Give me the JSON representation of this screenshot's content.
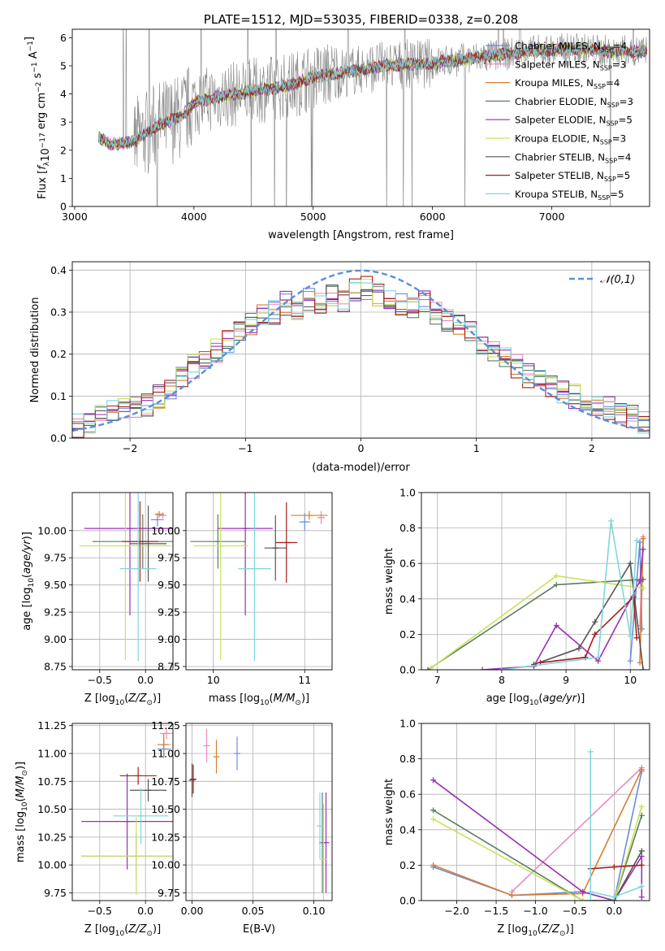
{
  "chart_data": [
    {
      "id": "spectrum",
      "type": "line",
      "title": "PLATE=1512, MJD=53035, FIBERID=0338, z=0.208",
      "xlabel": "wavelength [Angstrom, rest frame]",
      "ylabel": "Flux [f_λ 10^-17 erg cm^-2 s^-1 A^-1]",
      "xlim": [
        2980,
        7820
      ],
      "ylim": [
        0,
        6.3
      ],
      "xticks": [
        3000,
        4000,
        5000,
        6000,
        7000
      ],
      "yticks": [
        0,
        1,
        2,
        3,
        4,
        5,
        6
      ],
      "grid": false,
      "legend_position": "right",
      "series": [
        {
          "name": "Chabrier MILES, N_SSP=4",
          "color": "#6b8ddb"
        },
        {
          "name": "Salpeter MILES, N_SSP=3",
          "color": "#e98bc0"
        },
        {
          "name": "Kroupa MILES, N_SSP=4",
          "color": "#d97d2c"
        },
        {
          "name": "Chabrier ELODIE, N_SSP=3",
          "color": "#5d7d62"
        },
        {
          "name": "Salpeter ELODIE, N_SSP=5",
          "color": "#9a2fb3"
        },
        {
          "name": "Kroupa ELODIE, N_SSP=3",
          "color": "#c9e35a"
        },
        {
          "name": "Chabrier STELIB, N_SSP=4",
          "color": "#555555"
        },
        {
          "name": "Salpeter STELIB, N_SSP=5",
          "color": "#a61f1f"
        },
        {
          "name": "Kroupa STELIB, N_SSP=5",
          "color": "#7fd6dc"
        }
      ],
      "data_color": "#888888",
      "model_trend": {
        "x": [
          3200,
          3300,
          3500,
          3700,
          3900,
          4000,
          4200,
          4500,
          4800,
          5000,
          5300,
          5600,
          6000,
          6400,
          6800,
          7200,
          7500,
          7800
        ],
        "y": [
          2.5,
          2.2,
          2.3,
          2.9,
          3.2,
          3.7,
          3.9,
          4.1,
          4.3,
          4.6,
          4.8,
          5.0,
          5.1,
          5.3,
          5.5,
          5.6,
          5.5,
          5.5
        ]
      }
    },
    {
      "id": "residuals",
      "type": "histogram",
      "xlabel": "(data-model)/error",
      "ylabel": "Normed distribution",
      "xlim": [
        -2.5,
        2.5
      ],
      "ylim": [
        0,
        0.42
      ],
      "xticks": [
        -2,
        -1,
        0,
        1,
        2
      ],
      "yticks": [
        0.0,
        0.1,
        0.2,
        0.3,
        0.4
      ],
      "grid": true,
      "legend": {
        "label": "𝒩(0,1)",
        "position": "top-right",
        "style": "dashed",
        "color": "#5b8fd9"
      },
      "bin_edges": [
        -2.5,
        -2.4,
        -2.3,
        -2.2,
        -2.1,
        -2.0,
        -1.9,
        -1.8,
        -1.7,
        -1.6,
        -1.5,
        -1.4,
        -1.3,
        -1.2,
        -1.1,
        -1.0,
        -0.9,
        -0.8,
        -0.7,
        -0.6,
        -0.5,
        -0.4,
        -0.3,
        -0.2,
        -0.1,
        0.0,
        0.1,
        0.2,
        0.3,
        0.4,
        0.5,
        0.6,
        0.7,
        0.8,
        0.9,
        1.0,
        1.1,
        1.2,
        1.3,
        1.4,
        1.5,
        1.6,
        1.7,
        1.8,
        1.9,
        2.0,
        2.1,
        2.2,
        2.3,
        2.4,
        2.5
      ],
      "mean_values": [
        0.03,
        0.04,
        0.05,
        0.06,
        0.07,
        0.07,
        0.08,
        0.1,
        0.12,
        0.14,
        0.17,
        0.19,
        0.21,
        0.23,
        0.25,
        0.27,
        0.29,
        0.3,
        0.32,
        0.31,
        0.33,
        0.32,
        0.34,
        0.33,
        0.35,
        0.36,
        0.34,
        0.33,
        0.32,
        0.31,
        0.33,
        0.3,
        0.28,
        0.27,
        0.25,
        0.23,
        0.21,
        0.19,
        0.17,
        0.15,
        0.14,
        0.12,
        0.11,
        0.1,
        0.09,
        0.08,
        0.07,
        0.06,
        0.05,
        0.04
      ]
    },
    {
      "id": "age-vs-Z",
      "type": "errorbar",
      "xlabel": "Z [log10(Z/Z⊙)]",
      "ylabel": "age  [log10(age/yr)]",
      "xlim": [
        -0.8,
        0.3
      ],
      "ylim": [
        8.72,
        10.35
      ],
      "xticks": [
        -0.5,
        0.0
      ],
      "yticks": [
        8.75,
        9.0,
        9.25,
        9.5,
        9.75,
        10.0
      ],
      "grid": true,
      "points": [
        {
          "series": "Chabrier MILES",
          "x": 0.13,
          "xerr": 0.07,
          "y": 10.1,
          "yerr": 0.06
        },
        {
          "series": "Salpeter MILES",
          "x": 0.19,
          "xerr": 0.04,
          "y": 10.14,
          "yerr": 0.03
        },
        {
          "series": "Kroupa MILES",
          "x": 0.15,
          "xerr": 0.05,
          "y": 10.15,
          "yerr": 0.03
        },
        {
          "series": "Chabrier ELODIE",
          "x": -0.03,
          "xerr": 0.55,
          "y": 9.9,
          "yerr": 0.25
        },
        {
          "series": "Salpeter ELODIE",
          "x": -0.17,
          "xerr": 0.5,
          "y": 10.02,
          "yerr": 0.8
        },
        {
          "series": "Kroupa ELODIE",
          "x": -0.22,
          "xerr": 0.5,
          "y": 9.86,
          "yerr": 1.05
        },
        {
          "series": "Chabrier STELIB",
          "x": 0.03,
          "xerr": 0.2,
          "y": 9.88,
          "yerr": 0.35
        },
        {
          "series": "Salpeter STELIB",
          "x": -0.06,
          "xerr": 0.2,
          "y": 9.9,
          "yerr": 0.37
        },
        {
          "series": "Kroupa STELIB",
          "x": -0.08,
          "xerr": 0.2,
          "y": 9.65,
          "yerr": 0.85
        }
      ]
    },
    {
      "id": "age-vs-mass",
      "type": "errorbar",
      "xlabel": "mass [log10(M/M⊙)]",
      "ylabel": "",
      "xlim": [
        9.7,
        11.3
      ],
      "ylim": [
        8.72,
        10.35
      ],
      "xticks": [
        10,
        11
      ],
      "yticks": [
        8.75,
        9.0,
        9.25,
        9.5,
        9.75,
        10.0
      ],
      "grid": true,
      "points": [
        {
          "series": "Chabrier MILES",
          "x": 11.0,
          "xerr": 0.06,
          "y": 10.08,
          "yerr": 0.08
        },
        {
          "series": "Salpeter MILES",
          "x": 11.18,
          "xerr": 0.04,
          "y": 10.12,
          "yerr": 0.06
        },
        {
          "series": "Kroupa MILES",
          "x": 11.05,
          "xerr": 0.2,
          "y": 10.14,
          "yerr": 0.04
        },
        {
          "series": "Chabrier ELODIE",
          "x": 10.05,
          "xerr": 0.3,
          "y": 9.9,
          "yerr": 0.25
        },
        {
          "series": "Salpeter ELODIE",
          "x": 10.35,
          "xerr": 0.3,
          "y": 10.02,
          "yerr": 0.8
        },
        {
          "series": "Kroupa ELODIE",
          "x": 10.08,
          "xerr": 0.3,
          "y": 9.86,
          "yerr": 1.05
        },
        {
          "series": "Chabrier STELIB",
          "x": 10.68,
          "xerr": 0.12,
          "y": 9.84,
          "yerr": 0.3
        },
        {
          "series": "Salpeter STELIB",
          "x": 10.8,
          "xerr": 0.12,
          "y": 9.89,
          "yerr": 0.37
        },
        {
          "series": "Kroupa STELIB",
          "x": 10.45,
          "xerr": 0.18,
          "y": 9.65,
          "yerr": 0.85
        }
      ]
    },
    {
      "id": "weight-vs-age",
      "type": "line",
      "xlabel": "age  [log10(age/yr)]",
      "ylabel": "mass weight",
      "xlim": [
        6.75,
        10.3
      ],
      "ylim": [
        0,
        1.0
      ],
      "xticks": [
        7,
        8,
        9,
        10
      ],
      "yticks": [
        0.0,
        0.2,
        0.4,
        0.6,
        0.8,
        1.0
      ],
      "grid": true,
      "series": [
        {
          "name": "Chabrier MILES",
          "x": [
            10.0,
            10.15,
            10.18
          ],
          "y": [
            0.05,
            0.72,
            0.23
          ]
        },
        {
          "name": "Salpeter MILES",
          "x": [
            10.15,
            10.2
          ],
          "y": [
            0.25,
            0.75
          ]
        },
        {
          "name": "Kroupa MILES",
          "x": [
            10.15,
            10.2
          ],
          "y": [
            0.04,
            0.74
          ]
        },
        {
          "name": "Chabrier ELODIE",
          "x": [
            6.85,
            8.85,
            10.2
          ],
          "y": [
            0.0,
            0.48,
            0.51
          ]
        },
        {
          "name": "Salpeter ELODIE",
          "x": [
            7.7,
            8.5,
            8.85,
            9.5,
            10.15,
            10.2
          ],
          "y": [
            0.0,
            0.02,
            0.25,
            0.05,
            0.5,
            0.68
          ]
        },
        {
          "name": "Kroupa ELODIE",
          "x": [
            6.9,
            8.85,
            10.2
          ],
          "y": [
            0.01,
            0.53,
            0.46
          ]
        },
        {
          "name": "Chabrier STELIB",
          "x": [
            8.5,
            9.2,
            9.45,
            10.0,
            10.2
          ],
          "y": [
            0.03,
            0.12,
            0.27,
            0.6,
            0.0
          ]
        },
        {
          "name": "Salpeter STELIB",
          "x": [
            8.6,
            9.3,
            9.45,
            10.05,
            10.1
          ],
          "y": [
            0.04,
            0.07,
            0.2,
            0.41,
            0.18
          ]
        },
        {
          "name": "Kroupa STELIB",
          "x": [
            8.0,
            9.5,
            9.7,
            10.0,
            10.1
          ],
          "y": [
            0.0,
            0.07,
            0.84,
            0.19,
            0.73
          ]
        }
      ]
    },
    {
      "id": "mass-vs-Z",
      "type": "errorbar",
      "xlabel": "Z [log10(Z/Z⊙)]",
      "ylabel": "mass [log10(M/M⊙)]",
      "xlim": [
        -0.8,
        0.3
      ],
      "ylim": [
        9.68,
        11.27
      ],
      "xticks": [
        -0.5,
        0.0
      ],
      "yticks": [
        9.75,
        10.0,
        10.25,
        10.5,
        10.75,
        11.0,
        11.25
      ],
      "grid": true,
      "points": [
        {
          "series": "Chabrier MILES",
          "x": 0.2,
          "xerr": 0.07,
          "y": 11.04,
          "yerr": 0.08
        },
        {
          "series": "Salpeter MILES",
          "x": 0.23,
          "xerr": 0.07,
          "y": 11.18,
          "yerr": 0.05
        },
        {
          "series": "Kroupa MILES",
          "x": 0.2,
          "xerr": 0.07,
          "y": 11.08,
          "yerr": 0.1
        },
        {
          "series": "Chabrier ELODIE",
          "x": -0.1,
          "xerr": 0.6,
          "y": 10.08,
          "yerr": 0.2
        },
        {
          "series": "Salpeter ELODIE",
          "x": -0.2,
          "xerr": 0.5,
          "y": 10.39,
          "yerr": 0.43
        },
        {
          "series": "Kroupa ELODIE",
          "x": -0.1,
          "xerr": 0.6,
          "y": 10.08,
          "yerr": 0.35
        },
        {
          "series": "Chabrier STELIB",
          "x": 0.03,
          "xerr": 0.2,
          "y": 10.67,
          "yerr": 0.1
        },
        {
          "series": "Salpeter STELIB",
          "x": -0.08,
          "xerr": 0.2,
          "y": 10.8,
          "yerr": 0.08
        },
        {
          "series": "Kroupa STELIB",
          "x": -0.05,
          "xerr": 0.3,
          "y": 10.44,
          "yerr": 0.25
        }
      ]
    },
    {
      "id": "mass-vs-EBV",
      "type": "errorbar",
      "xlabel": "E(B-V)",
      "ylabel": "",
      "xlim": [
        -0.005,
        0.115
      ],
      "ylim": [
        9.68,
        11.27
      ],
      "xticks": [
        0.0,
        0.05,
        0.1
      ],
      "yticks": [
        9.75,
        10.0,
        10.25,
        10.5,
        10.75,
        11.0,
        11.25
      ],
      "grid": true,
      "points": [
        {
          "series": "Chabrier MILES",
          "x": 0.037,
          "y": 11.0,
          "yerr": 0.15
        },
        {
          "series": "Salpeter MILES",
          "x": 0.012,
          "y": 11.07,
          "yerr": 0.15
        },
        {
          "series": "Kroupa MILES",
          "x": 0.02,
          "y": 10.97,
          "yerr": 0.15
        },
        {
          "series": "Chabrier ELODIE",
          "x": 0.107,
          "y": 10.2,
          "yerr": 0.45
        },
        {
          "series": "Salpeter ELODIE",
          "x": 0.11,
          "y": 10.2,
          "yerr": 0.45
        },
        {
          "series": "Kroupa ELODIE",
          "x": 0.108,
          "y": 10.05,
          "yerr": 0.5
        },
        {
          "series": "Chabrier STELIB",
          "x": 0.0,
          "y": 10.76,
          "yerr": 0.15
        },
        {
          "series": "Salpeter STELIB",
          "x": 0.001,
          "y": 10.77,
          "yerr": 0.13
        },
        {
          "series": "Kroupa STELIB",
          "x": 0.105,
          "y": 10.35,
          "yerr": 0.3
        }
      ]
    },
    {
      "id": "weight-vs-Z",
      "type": "line",
      "xlabel": "Z [log10(Z/Z⊙)]",
      "ylabel": "mass weight",
      "xlim": [
        -2.45,
        0.45
      ],
      "ylim": [
        0,
        1.0
      ],
      "xticks": [
        -2.0,
        -1.5,
        -1.0,
        -0.5,
        0.0
      ],
      "yticks": [
        0.0,
        0.2,
        0.4,
        0.6,
        0.8,
        1.0
      ],
      "grid": true,
      "series": [
        {
          "name": "Chabrier MILES",
          "x": [
            -2.3,
            -1.3,
            -0.4,
            0.0,
            0.35
          ],
          "y": [
            0.19,
            0.03,
            0.05,
            0.0,
            0.73
          ]
        },
        {
          "name": "Salpeter MILES",
          "x": [
            -1.3,
            0.35
          ],
          "y": [
            0.05,
            0.75
          ]
        },
        {
          "name": "Kroupa MILES",
          "x": [
            -2.3,
            -1.3,
            -0.4,
            0.35
          ],
          "y": [
            0.2,
            0.03,
            0.04,
            0.74
          ]
        },
        {
          "name": "Chabrier ELODIE",
          "x": [
            -2.3,
            -0.4,
            0.0,
            0.35
          ],
          "y": [
            0.51,
            0.0,
            0.0,
            0.48
          ]
        },
        {
          "name": "Salpeter ELODIE",
          "x": [
            -2.3,
            -0.4,
            0.0,
            0.35,
            0.35
          ],
          "y": [
            0.68,
            0.05,
            0.0,
            0.25,
            0.02
          ]
        },
        {
          "name": "Kroupa ELODIE",
          "x": [
            -2.3,
            -0.4,
            0.0,
            0.35
          ],
          "y": [
            0.46,
            0.0,
            0.0,
            0.53
          ]
        },
        {
          "name": "Chabrier STELIB",
          "x": [
            -0.3,
            0.0,
            0.35
          ],
          "y": [
            0.0,
            0.0,
            0.28
          ]
        },
        {
          "name": "Salpeter STELIB",
          "x": [
            -0.3,
            0.0,
            0.35
          ],
          "y": [
            0.18,
            0.19,
            0.2
          ]
        },
        {
          "name": "Kroupa STELIB",
          "x": [
            -0.3,
            -0.3,
            -0.3,
            0.0,
            0.35
          ],
          "y": [
            0.84,
            0.0,
            0.05,
            0.02,
            0.08
          ]
        }
      ]
    }
  ]
}
